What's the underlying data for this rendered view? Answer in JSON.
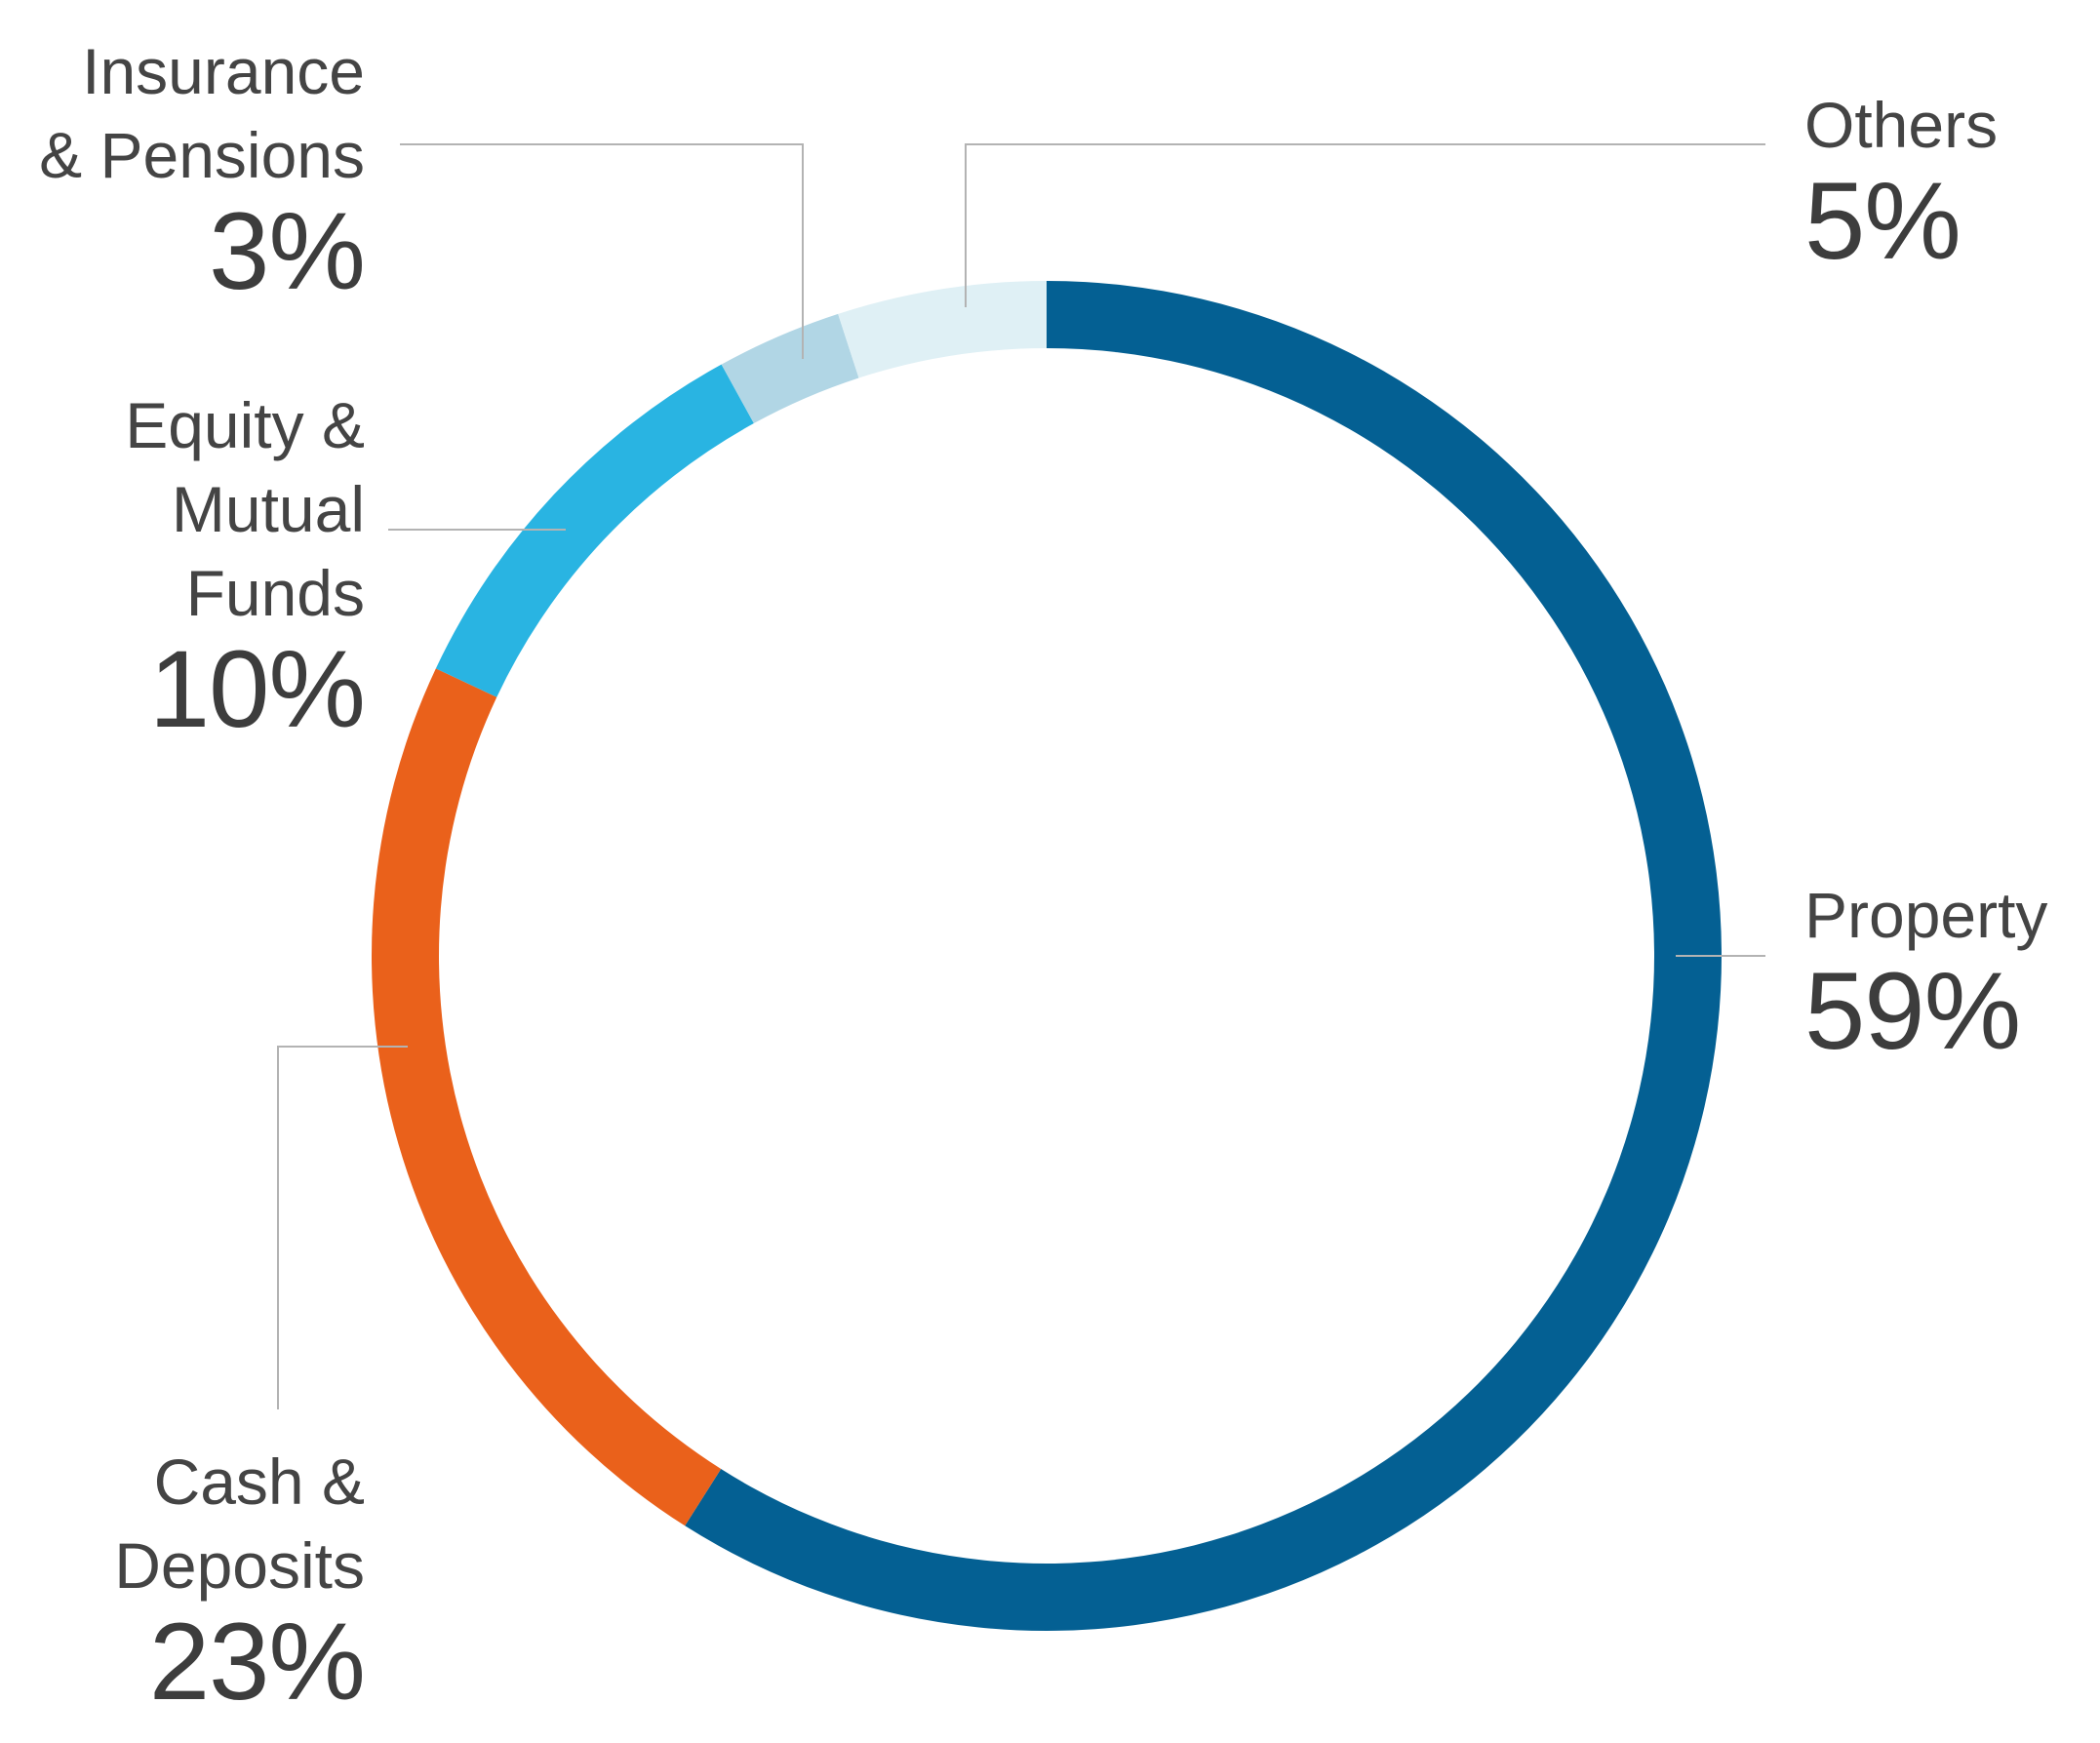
{
  "chart_data": {
    "type": "pie",
    "donut": true,
    "slices": [
      {
        "label": "Property",
        "name_text": "Property",
        "value": 59,
        "value_text": "59%",
        "color": "#046093"
      },
      {
        "label": "Cash & Deposits",
        "name_text": "Cash &\nDeposits",
        "value": 23,
        "value_text": "23%",
        "color": "#ea611b"
      },
      {
        "label": "Equity & Mutual Funds",
        "name_text": "Equity & \nMutual\nFunds",
        "value": 10,
        "value_text": "10%",
        "color": "#29b4e2"
      },
      {
        "label": "Insurance & Pensions",
        "name_text": "Insurance\n& Pensions",
        "value": 3,
        "value_text": "3%",
        "color": "#b1d6e5"
      },
      {
        "label": "Others",
        "name_text": "Others",
        "value": 5,
        "value_text": "5%",
        "color": "#dff0f5"
      }
    ]
  }
}
